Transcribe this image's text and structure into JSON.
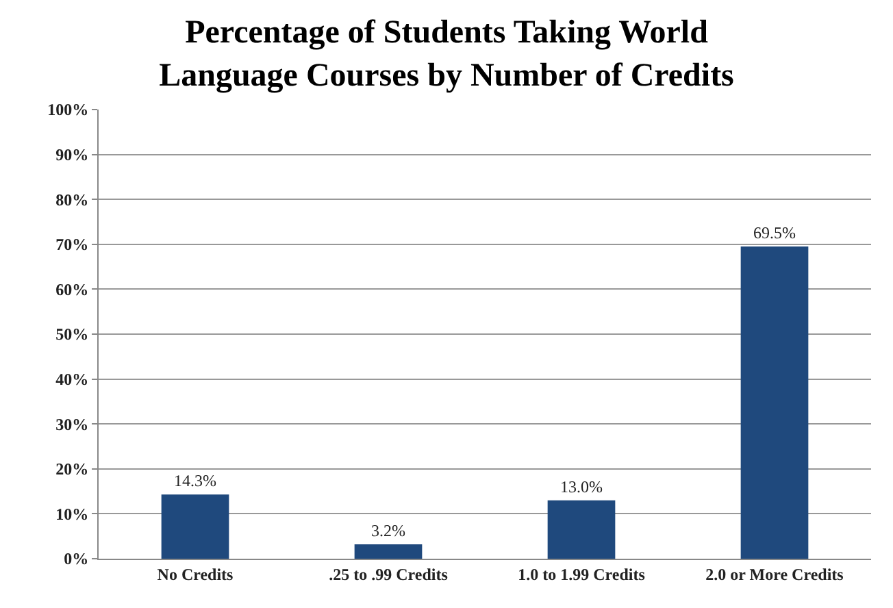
{
  "chart_data": {
    "type": "bar",
    "title": "Percentage of Students Taking World\nLanguage Courses by Number of Credits",
    "categories": [
      "No Credits",
      ".25 to .99 Credits",
      "1.0 to 1.99 Credits",
      "2.0 or More Credits"
    ],
    "values": [
      14.3,
      3.2,
      13.0,
      69.5
    ],
    "value_labels": [
      "14.3%",
      "3.2%",
      "13.0%",
      "69.5%"
    ],
    "color": "#1f497d",
    "ylim": [
      0,
      100
    ],
    "yticks": [
      {
        "value": 0,
        "label": "0%"
      },
      {
        "value": 10,
        "label": "10%"
      },
      {
        "value": 20,
        "label": "20%"
      },
      {
        "value": 30,
        "label": "30%"
      },
      {
        "value": 40,
        "label": "40%"
      },
      {
        "value": 50,
        "label": "50%"
      },
      {
        "value": 60,
        "label": "60%"
      },
      {
        "value": 70,
        "label": "70%"
      },
      {
        "value": 80,
        "label": "80%"
      },
      {
        "value": 90,
        "label": "90%"
      },
      {
        "value": 100,
        "label": "100%"
      }
    ],
    "grid": "y"
  }
}
